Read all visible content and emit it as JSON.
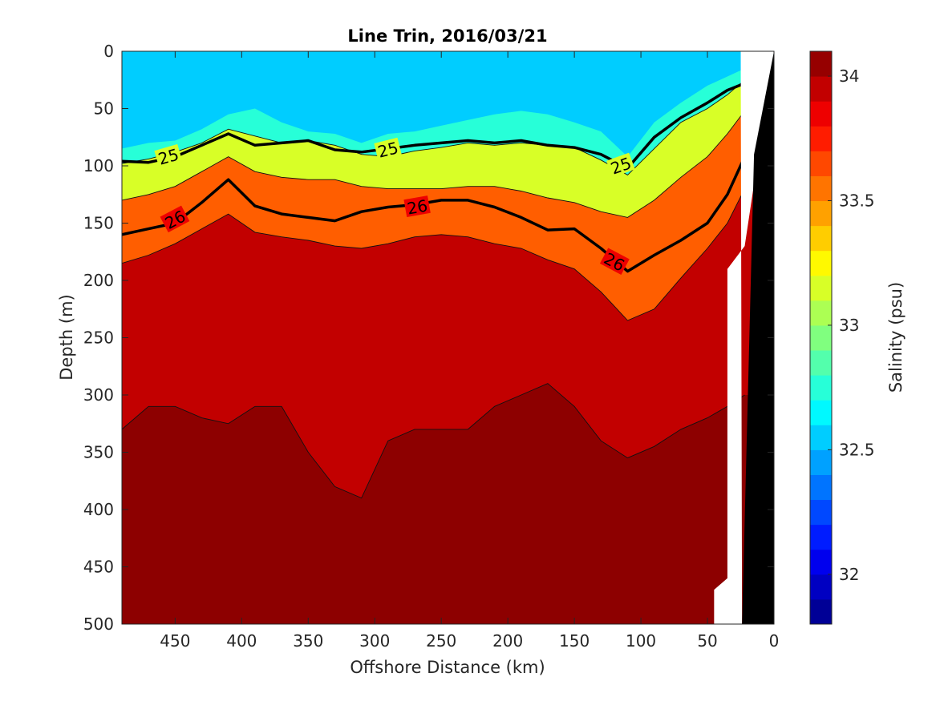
{
  "chart_data": {
    "type": "heatmap",
    "title": "Line Trin, 2016/03/21",
    "xlabel": "Offshore Distance (km)",
    "ylabel": "Depth (m)",
    "xlim": [
      490,
      0
    ],
    "ylim": [
      0,
      500
    ],
    "x_ticks": [
      "450",
      "400",
      "350",
      "300",
      "250",
      "200",
      "150",
      "100",
      "50",
      "0"
    ],
    "x_tick_values": [
      450,
      400,
      350,
      300,
      250,
      200,
      150,
      100,
      50,
      0
    ],
    "y_ticks": [
      "0",
      "50",
      "100",
      "150",
      "200",
      "250",
      "300",
      "350",
      "400",
      "450",
      "500"
    ],
    "y_tick_values": [
      0,
      50,
      100,
      150,
      200,
      250,
      300,
      350,
      400,
      450,
      500
    ],
    "colorbar": {
      "label": "Salinity (psu)",
      "range": [
        31.8,
        34.1
      ],
      "ticks": [
        "32",
        "32.5",
        "33",
        "33.5",
        "34"
      ],
      "tick_values": [
        32,
        32.5,
        33,
        33.5,
        34
      ],
      "colormap": "jet"
    },
    "contour_labels": [
      {
        "text": "25",
        "x": 455,
        "y": 92,
        "angle": -16
      },
      {
        "text": "25",
        "x": 290,
        "y": 86,
        "angle": -14
      },
      {
        "text": "25",
        "x": 115,
        "y": 100,
        "angle": -20
      },
      {
        "text": "26",
        "x": 450,
        "y": 147,
        "angle": -28
      },
      {
        "text": "26",
        "x": 268,
        "y": 136,
        "angle": -10
      },
      {
        "text": "26",
        "x": 120,
        "y": 184,
        "angle": 28
      }
    ],
    "salinity_layers": {
      "x": [
        490,
        470,
        450,
        430,
        410,
        390,
        370,
        350,
        330,
        310,
        290,
        270,
        250,
        230,
        210,
        190,
        170,
        150,
        130,
        110,
        90,
        70,
        50,
        35,
        22
      ],
      "depth_32_6": [
        85,
        80,
        78,
        68,
        55,
        50,
        62,
        70,
        72,
        80,
        72,
        70,
        65,
        60,
        55,
        52,
        55,
        62,
        70,
        92,
        62,
        45,
        30,
        22,
        15
      ],
      "depth_33_0": [
        98,
        94,
        88,
        80,
        68,
        74,
        80,
        78,
        82,
        90,
        92,
        87,
        84,
        80,
        82,
        80,
        82,
        84,
        95,
        108,
        85,
        62,
        50,
        38,
        25
      ],
      "depth_33_5": [
        130,
        125,
        118,
        105,
        92,
        105,
        110,
        112,
        112,
        118,
        120,
        120,
        120,
        118,
        118,
        122,
        128,
        132,
        140,
        145,
        130,
        110,
        92,
        72,
        52
      ],
      "depth_33_9": [
        185,
        178,
        168,
        155,
        142,
        158,
        162,
        165,
        170,
        172,
        168,
        162,
        160,
        162,
        168,
        172,
        182,
        190,
        210,
        235,
        225,
        198,
        172,
        150,
        120
      ],
      "depth_34_0": [
        330,
        310,
        310,
        320,
        325,
        310,
        310,
        350,
        380,
        390,
        340,
        330,
        330,
        330,
        310,
        300,
        290,
        310,
        340,
        355,
        345,
        330,
        320,
        310,
        300
      ],
      "isopycnal_25": [
        96,
        97,
        92,
        82,
        72,
        82,
        80,
        78,
        86,
        88,
        85,
        82,
        80,
        78,
        80,
        78,
        82,
        84,
        90,
        102,
        75,
        58,
        45,
        34,
        28
      ],
      "isopycnal_26": [
        160,
        155,
        150,
        132,
        112,
        135,
        142,
        145,
        148,
        140,
        136,
        134,
        130,
        130,
        136,
        145,
        156,
        155,
        172,
        192,
        178,
        165,
        150,
        125,
        92
      ]
    }
  }
}
